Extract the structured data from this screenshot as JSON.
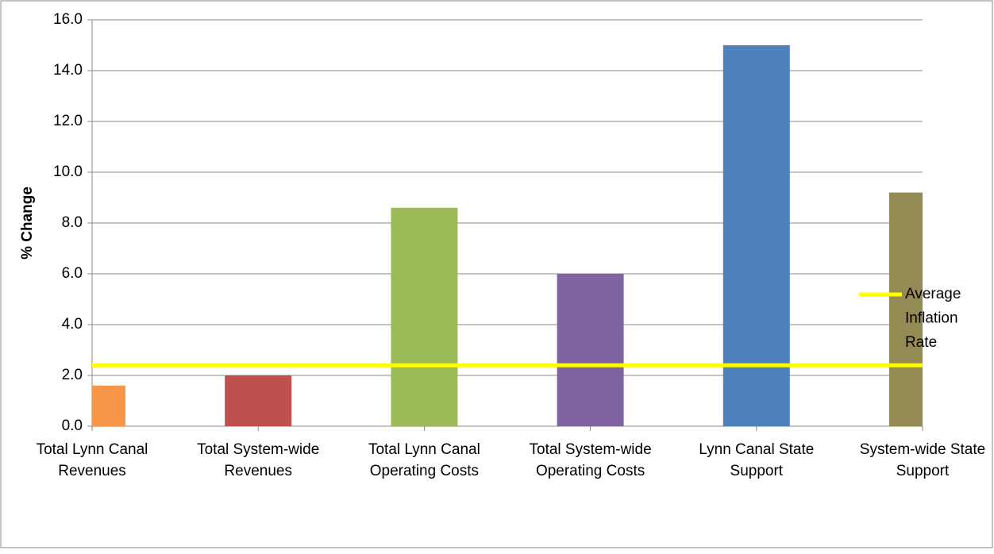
{
  "chart_data": {
    "type": "bar",
    "y_label": "% Change",
    "categories": [
      "Total Lynn Canal Revenues",
      "Total System-wide Revenues",
      "Total Lynn Canal Operating Costs",
      "Total System-wide Operating Costs",
      "Lynn Canal State Support",
      "System-wide State Support"
    ],
    "values": [
      1.6,
      2.0,
      8.6,
      6.0,
      15.0,
      9.2
    ],
    "colors": [
      "#f79646",
      "#c0504d",
      "#9bbb59",
      "#8064a2",
      "#4f81bd",
      "#948a54"
    ],
    "reference_lines": [
      {
        "name": "Average Inflation Rate",
        "color": "#ffff00",
        "value": 2.4
      }
    ],
    "ylim": [
      0,
      16
    ],
    "yticks": [
      {
        "value": 0,
        "label": "0.0"
      },
      {
        "value": 2,
        "label": "2.0"
      },
      {
        "value": 4,
        "label": "4.0"
      },
      {
        "value": 6,
        "label": "6.0"
      },
      {
        "value": 8,
        "label": "8.0"
      },
      {
        "value": 10,
        "label": "10.0"
      },
      {
        "value": 12,
        "label": "12.0"
      },
      {
        "value": 14,
        "label": "14.0"
      },
      {
        "value": 16,
        "label": "16.0"
      }
    ],
    "grid": true
  }
}
